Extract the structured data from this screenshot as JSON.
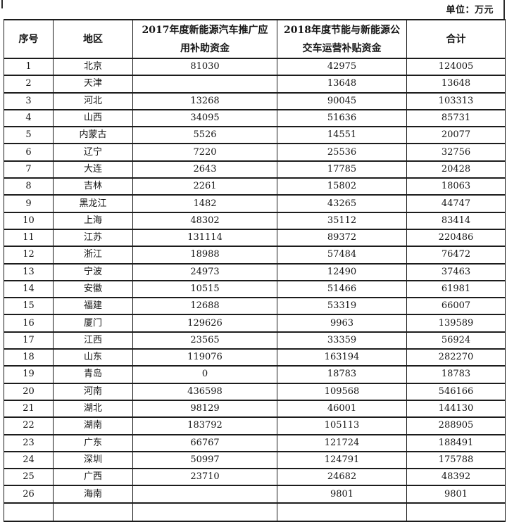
{
  "unit_label": "单位：万元",
  "table": {
    "headers": {
      "index": "序号",
      "region": "地区",
      "fund2017": "2017年度新能源汽车推广应用补助资金",
      "fund2018": "2018年度节能与新能源公交车运营补贴资金",
      "total": "合计"
    },
    "rows": [
      {
        "no": "1",
        "region": "北京",
        "fund2017": "81030",
        "fund2018": "42975",
        "total": "124005"
      },
      {
        "no": "2",
        "region": "天津",
        "fund2017": "",
        "fund2018": "13648",
        "total": "13648"
      },
      {
        "no": "3",
        "region": "河北",
        "fund2017": "13268",
        "fund2018": "90045",
        "total": "103313"
      },
      {
        "no": "4",
        "region": "山西",
        "fund2017": "34095",
        "fund2018": "51636",
        "total": "85731"
      },
      {
        "no": "5",
        "region": "内蒙古",
        "fund2017": "5526",
        "fund2018": "14551",
        "total": "20077"
      },
      {
        "no": "6",
        "region": "辽宁",
        "fund2017": "7220",
        "fund2018": "25536",
        "total": "32756"
      },
      {
        "no": "7",
        "region": "大连",
        "fund2017": "2643",
        "fund2018": "17785",
        "total": "20428"
      },
      {
        "no": "8",
        "region": "吉林",
        "fund2017": "2261",
        "fund2018": "15802",
        "total": "18063"
      },
      {
        "no": "9",
        "region": "黑龙江",
        "fund2017": "1482",
        "fund2018": "43265",
        "total": "44747"
      },
      {
        "no": "10",
        "region": "上海",
        "fund2017": "48302",
        "fund2018": "35112",
        "total": "83414"
      },
      {
        "no": "11",
        "region": "江苏",
        "fund2017": "131114",
        "fund2018": "89372",
        "total": "220486"
      },
      {
        "no": "12",
        "region": "浙江",
        "fund2017": "18988",
        "fund2018": "57484",
        "total": "76472"
      },
      {
        "no": "13",
        "region": "宁波",
        "fund2017": "24973",
        "fund2018": "12490",
        "total": "37463"
      },
      {
        "no": "14",
        "region": "安徽",
        "fund2017": "10515",
        "fund2018": "51466",
        "total": "61981"
      },
      {
        "no": "15",
        "region": "福建",
        "fund2017": "12688",
        "fund2018": "53319",
        "total": "66007"
      },
      {
        "no": "16",
        "region": "厦门",
        "fund2017": "129626",
        "fund2018": "9963",
        "total": "139589"
      },
      {
        "no": "17",
        "region": "江西",
        "fund2017": "23565",
        "fund2018": "33359",
        "total": "56924"
      },
      {
        "no": "18",
        "region": "山东",
        "fund2017": "119076",
        "fund2018": "163194",
        "total": "282270"
      },
      {
        "no": "19",
        "region": "青岛",
        "fund2017": "0",
        "fund2018": "18783",
        "total": "18783"
      },
      {
        "no": "20",
        "region": "河南",
        "fund2017": "436598",
        "fund2018": "109568",
        "total": "546166"
      },
      {
        "no": "21",
        "region": "湖北",
        "fund2017": "98129",
        "fund2018": "46001",
        "total": "144130"
      },
      {
        "no": "22",
        "region": "湖南",
        "fund2017": "183792",
        "fund2018": "105113",
        "total": "288905"
      },
      {
        "no": "23",
        "region": "广东",
        "fund2017": "66767",
        "fund2018": "121724",
        "total": "188491"
      },
      {
        "no": "24",
        "region": "深圳",
        "fund2017": "50997",
        "fund2018": "124791",
        "total": "175788"
      },
      {
        "no": "25",
        "region": "广西",
        "fund2017": "23710",
        "fund2018": "24682",
        "total": "48392"
      },
      {
        "no": "26",
        "region": "海南",
        "fund2017": "",
        "fund2018": "9801",
        "total": "9801"
      }
    ]
  }
}
